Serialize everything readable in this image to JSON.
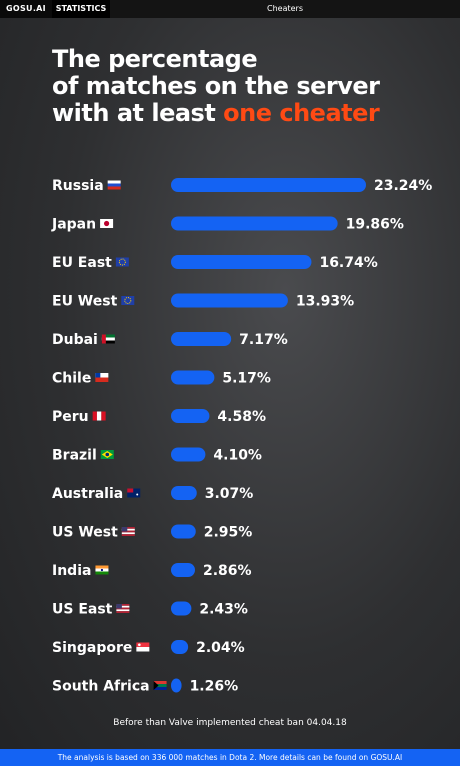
{
  "topbar": {
    "brand": "GOSU.AI",
    "stats": "STATISTICS",
    "section": "Cheaters"
  },
  "title": {
    "line1": "The percentage",
    "line2": "of matches on the server",
    "line3_prefix": "with at least ",
    "line3_highlight": "one cheater"
  },
  "colors": {
    "bar": "#1463f3",
    "highlight": "#ff4a14",
    "text": "#ffffff"
  },
  "chart_data": {
    "type": "bar",
    "orientation": "horizontal",
    "categories": [
      "Russia",
      "Japan",
      "EU East",
      "EU West",
      "Dubai",
      "Chile",
      "Peru",
      "Brazil",
      "Australia",
      "US West",
      "India",
      "US East",
      "Singapore",
      "South Africa"
    ],
    "flags": [
      "ru-flag-icon",
      "jp-flag-icon",
      "eu-flag-icon",
      "eu-flag-icon",
      "ae-flag-icon",
      "cl-flag-icon",
      "pe-flag-icon",
      "br-flag-icon",
      "au-flag-icon",
      "us-flag-icon",
      "in-flag-icon",
      "us-flag-icon",
      "sg-flag-icon",
      "za-flag-icon"
    ],
    "values": [
      23.24,
      19.86,
      16.74,
      13.93,
      7.17,
      5.17,
      4.58,
      4.1,
      3.07,
      2.95,
      2.86,
      2.43,
      2.04,
      1.26
    ],
    "value_labels": [
      "23.24%",
      "19.86%",
      "16.74%",
      "13.93%",
      "7.17%",
      "5.17%",
      "4.58%",
      "4.10%",
      "3.07%",
      "2.95%",
      "2.86%",
      "2.43%",
      "2.04%",
      "1.26%"
    ],
    "title": "The percentage of matches on the server with at least one cheater",
    "xlabel": "",
    "ylabel": "",
    "unit": "%",
    "grid": false
  },
  "note": "Before than Valve implemented cheat ban 04.04.18",
  "footer": "The analysis is based on 336 000 matches in Dota 2. More details can be found on GOSU.AI"
}
